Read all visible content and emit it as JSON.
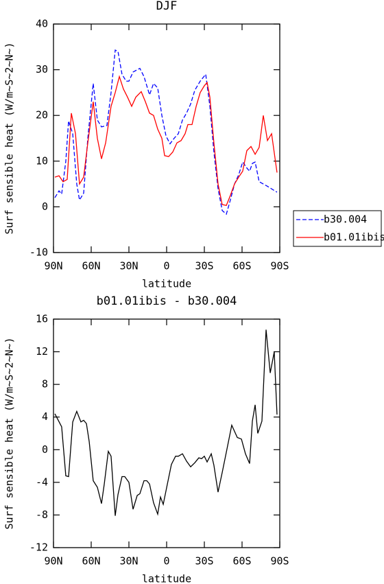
{
  "chart_data": [
    {
      "type": "line",
      "title": "DJF",
      "xlabel": "latitude",
      "ylabel": "Surf sensible heat (W/m~S~2~N~)",
      "xlim": [
        90,
        -90
      ],
      "xticks": [
        {
          "value": 90,
          "label": "90N"
        },
        {
          "value": 60,
          "label": "60N"
        },
        {
          "value": 30,
          "label": "30N"
        },
        0,
        {
          "value": -30,
          "label": "30S"
        },
        {
          "value": -60,
          "label": "60S"
        },
        {
          "value": -90,
          "label": "90S"
        }
      ],
      "ylim": [
        -10,
        40
      ],
      "yticks": [
        -10,
        0,
        10,
        20,
        30,
        40
      ],
      "legend": "right",
      "series": [
        {
          "name": "b30.004",
          "color": "#0000ff",
          "dash": true,
          "x": [
            88.9,
            85.6,
            83.5,
            80.2,
            78.0,
            74.7,
            71.5,
            69.3,
            66.0,
            62.7,
            58.4,
            55.1,
            51.8,
            47.5,
            44.2,
            40.9,
            38.7,
            35.5,
            32.2,
            30.0,
            26.7,
            21.3,
            18.0,
            13.6,
            10.4,
            7.1,
            3.8,
            0.5,
            -2.7,
            -6.0,
            -9.3,
            -12.6,
            -15.8,
            -19.1,
            -22.4,
            -26.7,
            -31.1,
            -34.4,
            -37.6,
            -40.9,
            -44.2,
            -47.5,
            -50.7,
            -54.0,
            -57.3,
            -60.5,
            -63.8,
            -66.0,
            -68.2,
            -70.4,
            -73.6,
            -80.2,
            -87.8
          ],
          "values": [
            2,
            3.5,
            2.8,
            10,
            18.8,
            16,
            5,
            1.5,
            3,
            15,
            27,
            19,
            17.5,
            17.8,
            25,
            34.3,
            34,
            29,
            27.5,
            27.5,
            29.5,
            30.3,
            28.5,
            24.5,
            27,
            26,
            20,
            15.5,
            13.8,
            15,
            16,
            19,
            20.5,
            22.5,
            25.5,
            27.5,
            29,
            22,
            12,
            4,
            -0.8,
            -1.6,
            1.5,
            5,
            7,
            9.8,
            8.5,
            7.8,
            9.5,
            9.8,
            5.5,
            4.5,
            3.2
          ]
        },
        {
          "name": "b01.01ibis",
          "color": "#ff0000",
          "dash": false,
          "x": [
            88.9,
            85.6,
            82.4,
            79.1,
            75.8,
            72.5,
            69.3,
            66.0,
            62.7,
            58.4,
            55.1,
            51.8,
            48.5,
            44.2,
            40.9,
            37.6,
            34.4,
            31.1,
            27.8,
            24.5,
            20.2,
            16.9,
            13.6,
            10.4,
            7.1,
            3.8,
            1.6,
            -1.6,
            -4.9,
            -8.2,
            -11.5,
            -14.7,
            -16.9,
            -20.2,
            -23.5,
            -26.7,
            -30.0,
            -32.2,
            -34.4,
            -37.6,
            -40.9,
            -44.2,
            -47.5,
            -50.7,
            -54.0,
            -57.3,
            -60.5,
            -63.8,
            -67.1,
            -70.4,
            -73.6,
            -76.9,
            -80.2,
            -83.5,
            -87.8
          ],
          "values": [
            6.5,
            6.8,
            5.5,
            6,
            20.5,
            16,
            5,
            6.5,
            14,
            23,
            15,
            10.5,
            14,
            22,
            25,
            28.5,
            25.8,
            24,
            22,
            24,
            25.2,
            23,
            20.5,
            20,
            17,
            15,
            11.2,
            11,
            12,
            14,
            14.5,
            16,
            18,
            18,
            22,
            25,
            26.5,
            27.2,
            24,
            14,
            5,
            0.5,
            0.3,
            2.5,
            5,
            6.5,
            7.8,
            12.3,
            13.2,
            11.5,
            13,
            20,
            14.5,
            16,
            7.5
          ]
        }
      ]
    },
    {
      "type": "line",
      "title": "b01.01ibis - b30.004",
      "xlabel": "latitude",
      "ylabel": "Surf sensible heat (W/m~S~2~N~)",
      "xlim": [
        90,
        -90
      ],
      "xticks": [
        {
          "value": 90,
          "label": "90N"
        },
        {
          "value": 60,
          "label": "60N"
        },
        {
          "value": 30,
          "label": "30N"
        },
        0,
        {
          "value": -30,
          "label": "30S"
        },
        {
          "value": -60,
          "label": "60S"
        },
        {
          "value": -90,
          "label": "90S"
        }
      ],
      "ylim": [
        -12,
        16
      ],
      "yticks": [
        -12,
        -8,
        -4,
        0,
        4,
        8,
        12,
        16
      ],
      "series": [
        {
          "color": "#000000",
          "dash": false,
          "x": [
            88.9,
            83.5,
            80.2,
            78.0,
            74.7,
            71.5,
            68.2,
            66.0,
            63.8,
            61.6,
            58.4,
            55.1,
            51.8,
            49.6,
            46.4,
            44.2,
            40.9,
            38.7,
            35.5,
            33.3,
            30.0,
            26.7,
            23.4,
            21.3,
            18.0,
            15.8,
            13.6,
            10.4,
            7.1,
            4.9,
            2.7,
            -0.6,
            -3.8,
            -7.1,
            -9.3,
            -12.6,
            -15.8,
            -19.1,
            -22.4,
            -25.6,
            -27.8,
            -30.0,
            -32.2,
            -35.5,
            -37.6,
            -40.9,
            -44.2,
            -47.5,
            -51.8,
            -56.2,
            -59.5,
            -62.7,
            -66.0,
            -68.2,
            -70.4,
            -72.5,
            -75.8,
            -79.1,
            -82.4,
            -85.6,
            -87.8
          ],
          "values": [
            4.4,
            2.8,
            -3.2,
            -3.3,
            3.4,
            4.7,
            3.4,
            3.6,
            3.2,
            1,
            -3.8,
            -4.6,
            -6.6,
            -4.2,
            -0.2,
            -0.8,
            -8.1,
            -5.5,
            -3.3,
            -3.3,
            -4,
            -7.3,
            -5.6,
            -5.4,
            -3.8,
            -3.8,
            -4.2,
            -6.5,
            -7.9,
            -5.8,
            -6.7,
            -4.2,
            -1.8,
            -0.8,
            -0.8,
            -0.5,
            -1.4,
            -2.1,
            -1.6,
            -1,
            -1.1,
            -0.8,
            -1.5,
            -0.5,
            -1.9,
            -5.2,
            -2.8,
            -0.3,
            3,
            1.5,
            1.3,
            -0.5,
            -1.7,
            3.5,
            5.5,
            2,
            3.5,
            14.7,
            9.4,
            12,
            4.3
          ]
        }
      ]
    }
  ]
}
